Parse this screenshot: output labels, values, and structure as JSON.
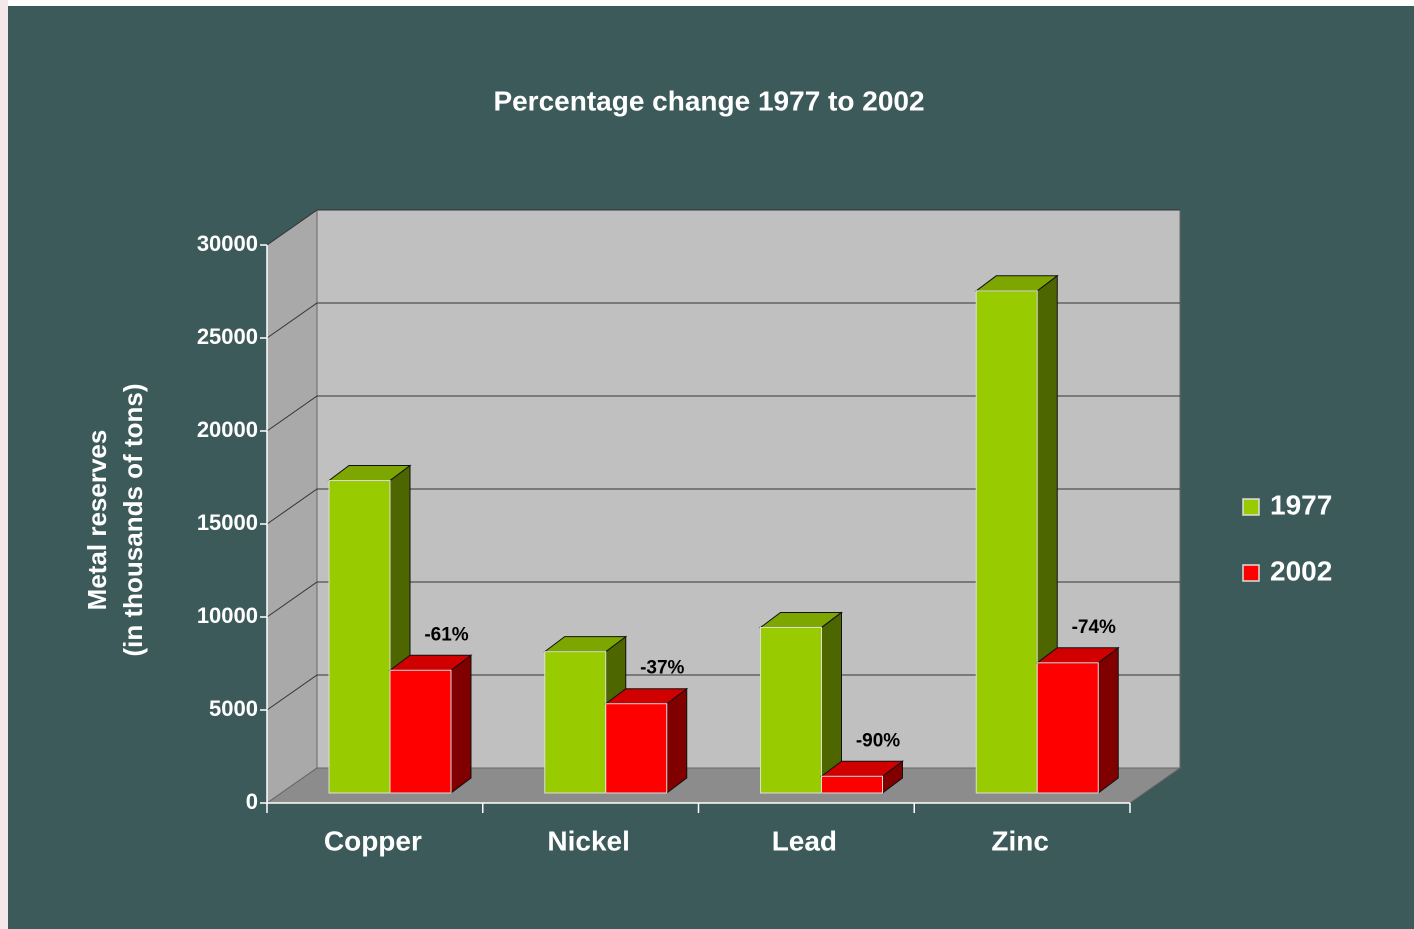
{
  "chart_data": {
    "type": "bar3d",
    "title": "Percentage change 1977 to 2002",
    "ylabel": [
      "Metal reserves",
      "(in thousands of tons)"
    ],
    "categories": [
      "Copper",
      "Nickel",
      "Lead",
      "Zinc"
    ],
    "series": [
      {
        "name": "1977",
        "color": "#99cc00",
        "values": [
          16800,
          7600,
          8900,
          27000
        ]
      },
      {
        "name": "2002",
        "color": "#ff0000",
        "values": [
          6600,
          4800,
          900,
          7000
        ]
      }
    ],
    "annotations": [
      "-61%",
      "-37%",
      "-90%",
      "-74%"
    ],
    "ylim": [
      0,
      30000
    ],
    "yticks": [
      0,
      5000,
      10000,
      15000,
      20000,
      25000,
      30000
    ],
    "grid": true,
    "legend": "right"
  }
}
